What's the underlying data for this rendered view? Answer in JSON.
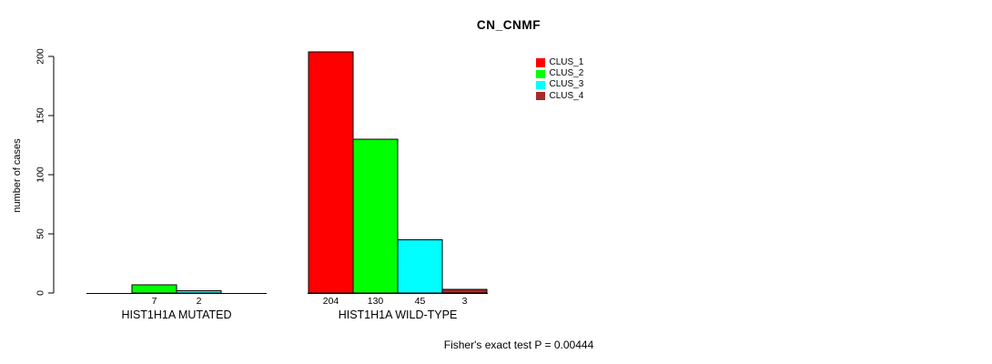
{
  "chart_data": {
    "type": "bar",
    "title": "CN_CNMF",
    "ylabel": "number of cases",
    "ylim": [
      0,
      200
    ],
    "yticks": [
      0,
      50,
      100,
      150,
      200
    ],
    "grid": false,
    "legend_position": "top-right",
    "categories": [
      "HIST1H1A MUTATED",
      "HIST1H1A WILD-TYPE"
    ],
    "series": [
      {
        "name": "CLUS_1",
        "color": "#FF0000",
        "values": [
          0,
          204
        ]
      },
      {
        "name": "CLUS_2",
        "color": "#00FF00",
        "values": [
          7,
          130
        ]
      },
      {
        "name": "CLUS_3",
        "color": "#00FFFF",
        "values": [
          2,
          45
        ]
      },
      {
        "name": "CLUS_4",
        "color": "#A52A2A",
        "values": [
          0,
          3
        ]
      }
    ],
    "bar_value_labels": [
      [
        "",
        "7",
        "2",
        ""
      ],
      [
        "204",
        "130",
        "45",
        "3"
      ]
    ],
    "annotation": "Fisher's exact test P = 0.00444",
    "axis_color": "#000000",
    "background": "#FFFFFF"
  }
}
